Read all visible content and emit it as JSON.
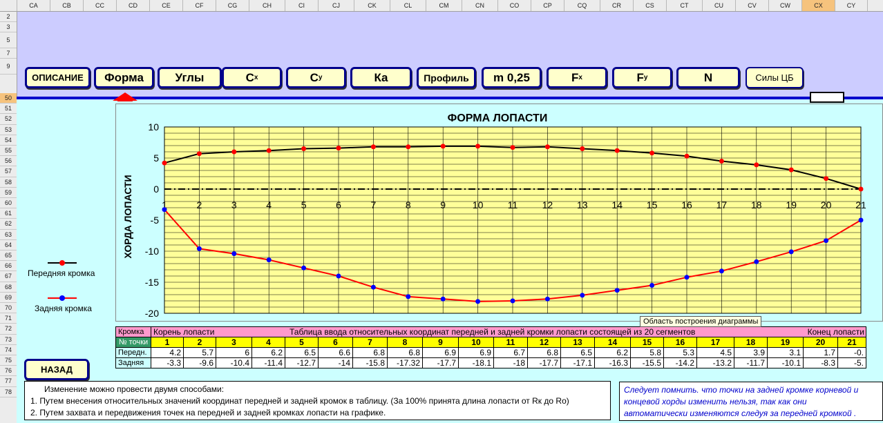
{
  "columns": [
    "CA",
    "CB",
    "CC",
    "CD",
    "CE",
    "CF",
    "CG",
    "CH",
    "CI",
    "CJ",
    "CK",
    "CL",
    "CM",
    "CN",
    "CO",
    "CP",
    "CQ",
    "CR",
    "CS",
    "CT",
    "CU",
    "CV",
    "CW",
    "CX",
    "CY"
  ],
  "selected_column": "CX",
  "rows": [
    "2",
    "3",
    "5",
    "7",
    "9",
    "50",
    "51",
    "52",
    "53",
    "54",
    "55",
    "56",
    "57",
    "58",
    "59",
    "60",
    "61",
    "62",
    "63",
    "64",
    "65",
    "66",
    "67",
    "68",
    "69",
    "70",
    "71",
    "72",
    "73",
    "74",
    "75",
    "76",
    "77",
    "78"
  ],
  "selected_row": "50",
  "nav": {
    "opisanie": "ОПИСАНИЕ",
    "forma": "Форма",
    "ugly": "Углы",
    "cx_main": "C",
    "cx_sub": "x",
    "cy_main": "C",
    "cy_sub": "y",
    "ka": "Ка",
    "profil": "Профиль",
    "m025": "m 0,25",
    "fx_main": "F",
    "fx_sub": "x",
    "fy_main": "F",
    "fy_sub": "y",
    "n": "N",
    "sily": "Силы ЦБ"
  },
  "legend": {
    "front": "Передняя кромка",
    "back": "Задняя кромка"
  },
  "chart_data": {
    "type": "line",
    "title": "ФОРМА  ЛОПАСТИ",
    "ylabel": "ХОРДА  ЛОПАСТИ",
    "xlabel": "",
    "ylim": [
      -20,
      10
    ],
    "yticks": [
      10,
      5,
      0,
      -5,
      -10,
      -15,
      -20
    ],
    "x": [
      1,
      2,
      3,
      4,
      5,
      6,
      7,
      8,
      9,
      10,
      11,
      12,
      13,
      14,
      15,
      16,
      17,
      18,
      19,
      20,
      21
    ],
    "series": [
      {
        "name": "Передняя кромка",
        "color": "#000000",
        "marker": "#ff0000",
        "values": [
          4.2,
          5.7,
          6,
          6.2,
          6.5,
          6.6,
          6.8,
          6.8,
          6.9,
          6.9,
          6.7,
          6.8,
          6.5,
          6.2,
          5.8,
          5.3,
          4.5,
          3.9,
          3.1,
          1.7,
          0
        ]
      },
      {
        "name": "Задняя кромка",
        "color": "#ff0000",
        "marker": "#0000ff",
        "values": [
          -3.3,
          -9.6,
          -10.4,
          -11.4,
          -12.7,
          -14,
          -15.8,
          -17.32,
          -17.7,
          -18.1,
          -18,
          -17.7,
          -17.1,
          -16.3,
          -15.5,
          -14.2,
          -13.2,
          -11.7,
          -10.1,
          -8.3,
          -5
        ]
      }
    ],
    "grid": true,
    "plot_bg": "#ffff99",
    "zero_line": "dash-dot"
  },
  "tooltip": "Область построения диаграммы",
  "table": {
    "header_label": "Кромка",
    "root": "Корень лопасти",
    "caption": "Таблица  ввода  относительных  координат  передней  и  задней  кромки  лопасти  состоящей  из  20  сегментов",
    "end": "Конец лопасти",
    "num_label": "№ точки",
    "numbers": [
      "1",
      "2",
      "3",
      "4",
      "5",
      "6",
      "7",
      "8",
      "9",
      "10",
      "11",
      "12",
      "13",
      "14",
      "15",
      "16",
      "17",
      "18",
      "19",
      "20",
      "21"
    ],
    "front_label": "Передн.",
    "front": [
      "4.2",
      "5.7",
      "6",
      "6.2",
      "6.5",
      "6.6",
      "6.8",
      "6.8",
      "6.9",
      "6.9",
      "6.7",
      "6.8",
      "6.5",
      "6.2",
      "5.8",
      "5.3",
      "4.5",
      "3.9",
      "3.1",
      "1.7",
      "-0."
    ],
    "back_label": "Задняя",
    "back": [
      "-3.3",
      "-9.6",
      "-10.4",
      "-11.4",
      "-12.7",
      "-14",
      "-15.8",
      "-17.32",
      "-17.7",
      "-18.1",
      "-18",
      "-17.7",
      "-17.1",
      "-16.3",
      "-15.5",
      "-14.2",
      "-13.2",
      "-11.7",
      "-10.1",
      "-8.3",
      "-5."
    ]
  },
  "back_button": "НАЗАД",
  "info": {
    "intro": "Изменение можно провести двумя способами:",
    "p1": "1. Путем внесения относительных значений координат передней и задней кромок в таблицу. (За 100% принята длина лопасти от Rк до Ro)",
    "p2": "2. Путем захвата и передвижения точек на передней и задней кромках лопасти на графике."
  },
  "note": {
    "l1": "Следует помнить. что точки на задней кромке корневой и",
    "l2": "концевой хорды изменить нельзя, так как они",
    "l3": "автоматически изменяются следуя за передней кромкой ."
  }
}
